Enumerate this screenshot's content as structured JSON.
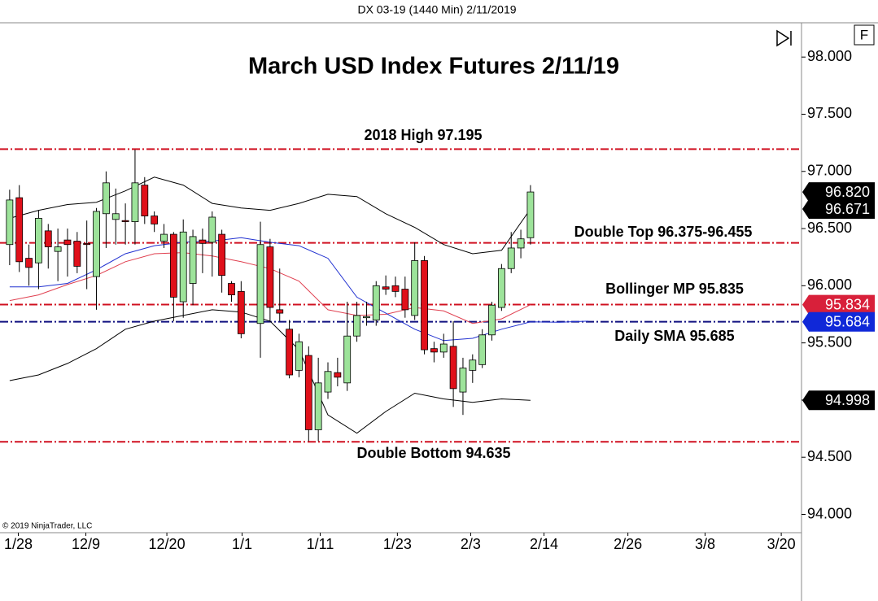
{
  "chart_data": {
    "type": "candlestick",
    "header": "DX 03-19 (1440 Min)  2/11/2019",
    "title": "March USD Index Futures 2/11/19",
    "copyright": "© 2019 NinjaTrader, LLC",
    "up_color": "#9de39a",
    "down_color": "#e0101a",
    "x": [
      0,
      1,
      2,
      3,
      4,
      5,
      6,
      7,
      8,
      9,
      10,
      11,
      12,
      13,
      14,
      15,
      16,
      17,
      18,
      19,
      20,
      21,
      22,
      23,
      24,
      26,
      27,
      28,
      29,
      30,
      31,
      32,
      33,
      34,
      35,
      36,
      37,
      38,
      39,
      40,
      41,
      42,
      43,
      44,
      45,
      46,
      47,
      48,
      49,
      50,
      51,
      52,
      53,
      54
    ],
    "open": [
      96.36,
      96.77,
      96.24,
      96.2,
      96.48,
      96.3,
      96.4,
      96.39,
      96.37,
      96.08,
      96.63,
      96.58,
      96.57,
      96.56,
      96.88,
      96.61,
      96.39,
      96.45,
      95.86,
      96.02,
      96.4,
      96.38,
      96.45,
      96.02,
      95.95,
      95.67,
      96.34,
      95.79,
      95.62,
      95.26,
      95.39,
      94.74,
      95.07,
      95.24,
      95.15,
      95.56,
      95.72,
      95.7,
      95.99,
      96.0,
      95.97,
      95.74,
      96.22,
      95.45,
      95.42,
      95.47,
      95.07,
      95.26,
      95.31,
      95.57,
      95.81,
      96.15,
      96.33,
      96.42
    ],
    "high": [
      96.84,
      96.88,
      96.36,
      96.66,
      96.54,
      96.5,
      96.5,
      96.47,
      96.57,
      96.68,
      97.0,
      96.85,
      96.72,
      97.19,
      96.95,
      96.65,
      96.54,
      96.47,
      96.58,
      96.49,
      96.5,
      96.65,
      96.49,
      96.04,
      96.04,
      96.56,
      96.41,
      96.15,
      95.7,
      95.58,
      95.47,
      95.37,
      95.33,
      95.37,
      95.86,
      95.86,
      95.86,
      96.04,
      96.09,
      96.08,
      96.08,
      96.38,
      96.26,
      95.51,
      95.58,
      95.69,
      95.37,
      95.4,
      95.62,
      95.86,
      96.19,
      96.47,
      96.49,
      96.88
    ],
    "low": [
      96.18,
      96.12,
      96.0,
      95.97,
      96.15,
      96.04,
      96.08,
      96.11,
      95.97,
      95.79,
      96.33,
      96.36,
      96.36,
      96.36,
      96.54,
      96.47,
      96.33,
      95.69,
      95.72,
      95.83,
      96.11,
      96.08,
      95.94,
      95.86,
      95.54,
      95.37,
      95.69,
      95.69,
      95.19,
      95.2,
      94.64,
      94.64,
      95.01,
      95.12,
      95.08,
      95.51,
      95.65,
      95.65,
      95.92,
      95.9,
      95.72,
      95.7,
      95.4,
      95.33,
      95.37,
      94.94,
      94.87,
      95.15,
      95.28,
      95.52,
      95.78,
      96.11,
      96.24,
      96.36
    ],
    "close": [
      96.75,
      96.21,
      96.16,
      96.59,
      96.34,
      96.34,
      96.36,
      96.17,
      96.36,
      96.65,
      96.9,
      96.63,
      96.56,
      96.9,
      96.61,
      96.54,
      96.45,
      95.9,
      96.47,
      96.43,
      96.37,
      96.6,
      96.09,
      95.92,
      95.58,
      96.36,
      95.81,
      95.76,
      95.22,
      95.51,
      94.74,
      95.15,
      95.25,
      95.2,
      95.56,
      95.74,
      95.73,
      96.0,
      95.97,
      95.95,
      95.79,
      96.22,
      95.44,
      95.42,
      95.49,
      95.1,
      95.28,
      95.35,
      95.57,
      95.83,
      96.15,
      96.33,
      96.41,
      96.82
    ],
    "indicators": [
      {
        "color": "#000000",
        "x": [
          0,
          3,
          6,
          9,
          12,
          15,
          18,
          21,
          24,
          27,
          30,
          33,
          36,
          39,
          42,
          45,
          48,
          51,
          54
        ],
        "values": [
          96.59,
          96.66,
          96.71,
          96.73,
          96.83,
          96.95,
          96.88,
          96.72,
          96.68,
          96.66,
          96.72,
          96.8,
          96.78,
          96.63,
          96.51,
          96.36,
          96.28,
          96.31,
          96.671
        ]
      },
      {
        "color": "#000000",
        "x": [
          0,
          3,
          6,
          9,
          12,
          15,
          18,
          21,
          24,
          27,
          30,
          33,
          36,
          39,
          42,
          45,
          48,
          51,
          54
        ],
        "values": [
          95.17,
          95.22,
          95.32,
          95.45,
          95.62,
          95.69,
          95.74,
          95.79,
          95.77,
          95.69,
          95.44,
          94.87,
          94.71,
          94.9,
          95.06,
          95.01,
          94.98,
          95.01,
          94.998
        ]
      },
      {
        "color": "#e04050",
        "x": [
          0,
          3,
          6,
          9,
          12,
          15,
          18,
          21,
          24,
          27,
          30,
          33,
          36,
          39,
          42,
          45,
          48,
          51,
          54
        ],
        "values": [
          95.87,
          95.92,
          96.01,
          96.09,
          96.21,
          96.28,
          96.29,
          96.26,
          96.21,
          96.15,
          96.04,
          95.79,
          95.74,
          95.75,
          95.81,
          95.78,
          95.67,
          95.71,
          95.834
        ]
      },
      {
        "color": "#2030d0",
        "x": [
          0,
          3,
          6,
          9,
          12,
          15,
          18,
          21,
          24,
          27,
          30,
          33,
          36,
          39,
          42,
          45,
          48,
          51,
          54,
          57,
          60
        ],
        "values": [
          95.99,
          95.99,
          96.02,
          96.14,
          96.28,
          96.35,
          96.38,
          96.39,
          96.42,
          96.38,
          96.35,
          96.24,
          95.9,
          95.76,
          95.62,
          95.52,
          95.54,
          95.62,
          95.684,
          95.68,
          95.69
        ]
      }
    ],
    "reference_lines": [
      {
        "value": 97.195,
        "label": "2018 High 97.195",
        "color": "#d01020"
      },
      {
        "value": 96.375,
        "label": "Double Top 96.375-96.455",
        "color": "#d01020"
      },
      {
        "value": 95.835,
        "label": "Bollinger MP 95.835",
        "color": "#d01020"
      },
      {
        "value": 95.685,
        "label": "Daily SMA 95.685",
        "color": "#101080"
      },
      {
        "value": 94.635,
        "label": "Double Bottom 94.635",
        "color": "#d01020"
      }
    ],
    "price_markers": [
      {
        "value": 96.82,
        "label": "96.820",
        "color": "#000000"
      },
      {
        "value": 96.671,
        "label": "96.671",
        "color": "#000000"
      },
      {
        "value": 95.834,
        "label": "95.834",
        "color": "#d8203a"
      },
      {
        "value": 95.684,
        "label": "95.684",
        "color": "#1028d8"
      },
      {
        "value": 94.998,
        "label": "94.998",
        "color": "#000000"
      }
    ],
    "xlim": [
      -1,
      82.1
    ],
    "ylim": [
      93.84,
      98.3
    ],
    "yticks": [
      {
        "value": 94,
        "label": "94.000"
      },
      {
        "value": 94.5,
        "label": "94.500"
      },
      {
        "value": 95,
        "label": "95.000"
      },
      {
        "value": 95.5,
        "label": "95.500"
      },
      {
        "value": 96,
        "label": "96.000"
      },
      {
        "value": 96.5,
        "label": "96.500"
      },
      {
        "value": 97,
        "label": "97.000"
      },
      {
        "value": 97.5,
        "label": "97.500"
      },
      {
        "value": 98,
        "label": "98.000"
      }
    ],
    "xticks": [
      {
        "value": 0.9,
        "label": "1/28"
      },
      {
        "value": 7.9,
        "label": "12/9"
      },
      {
        "value": 16.3,
        "label": "12/20"
      },
      {
        "value": 24.1,
        "label": "1/1"
      },
      {
        "value": 32.2,
        "label": "1/11"
      },
      {
        "value": 40.2,
        "label": "1/23"
      },
      {
        "value": 47.8,
        "label": "2/3"
      },
      {
        "value": 55.4,
        "label": "2/14"
      },
      {
        "value": 64.1,
        "label": "2/26"
      },
      {
        "value": 72.1,
        "label": "3/8"
      },
      {
        "value": 80.0,
        "label": "3/20"
      }
    ]
  }
}
